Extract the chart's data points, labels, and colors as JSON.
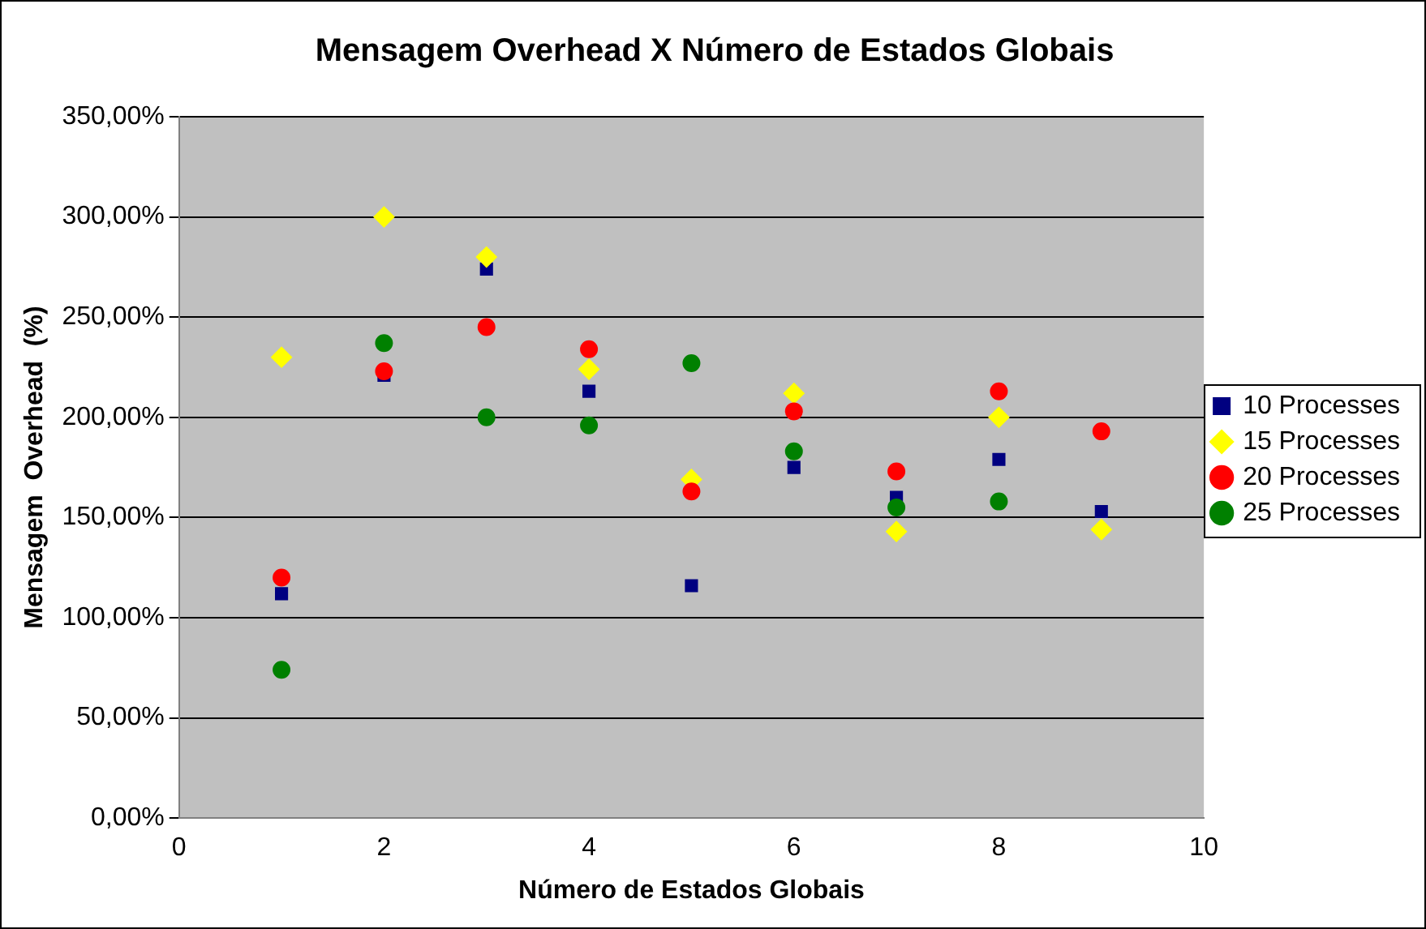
{
  "chart_data": {
    "type": "scatter",
    "title": "Mensagem Overhead X Número de Estados Globais",
    "xlabel": "Número de Estados Globais",
    "ylabel": "Mensagem  Overhead  (%)",
    "x": [
      1,
      2,
      3,
      4,
      5,
      6,
      7,
      8,
      9
    ],
    "series": [
      {
        "name": "10 Processes",
        "color": "#000080",
        "marker": "square",
        "values": [
          112,
          221,
          274,
          213,
          116,
          175,
          160,
          179,
          153
        ]
      },
      {
        "name": "15 Processes",
        "color": "#ffff00",
        "marker": "diamond",
        "values": [
          230,
          300,
          280,
          224,
          169,
          212,
          143,
          200,
          144
        ]
      },
      {
        "name": "20 Processes",
        "color": "#ff0000",
        "marker": "circle",
        "values": [
          120,
          223,
          245,
          234,
          163,
          203,
          173,
          213,
          193
        ]
      },
      {
        "name": "25 Processes",
        "color": "#008000",
        "marker": "circle",
        "values": [
          74,
          237,
          200,
          196,
          227,
          183,
          155,
          158,
          null
        ]
      }
    ],
    "xlim": [
      0,
      10
    ],
    "xticks": [
      0,
      2,
      4,
      6,
      8,
      10
    ],
    "ylim": [
      0,
      350
    ],
    "yticks": [
      {
        "value": 0,
        "label": "0,00%"
      },
      {
        "value": 50,
        "label": "50,00%"
      },
      {
        "value": 100,
        "label": "100,00%"
      },
      {
        "value": 150,
        "label": "150,00%"
      },
      {
        "value": 200,
        "label": "200,00%"
      },
      {
        "value": 250,
        "label": "250,00%"
      },
      {
        "value": 300,
        "label": "300,00%"
      },
      {
        "value": 350,
        "label": "350,00%"
      }
    ],
    "grid": "y",
    "legend": "right"
  }
}
